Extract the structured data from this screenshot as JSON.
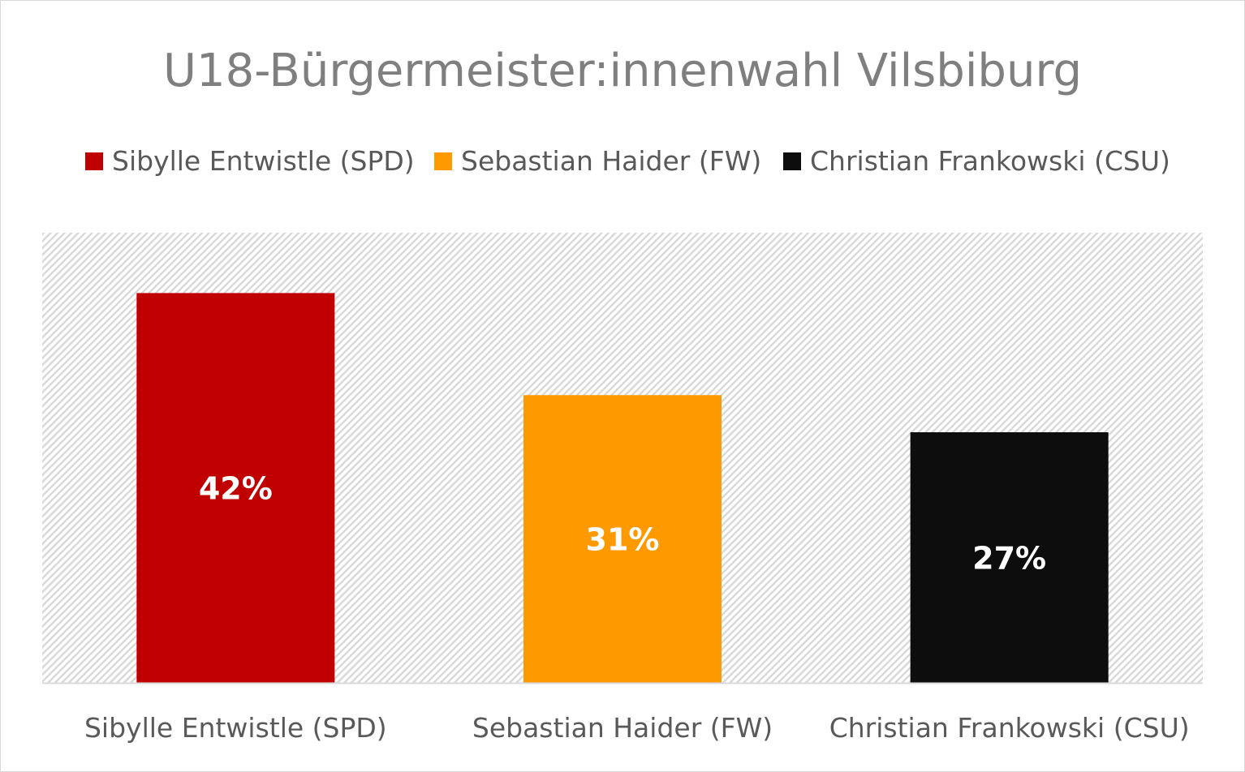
{
  "chart_data": {
    "type": "bar",
    "title": "U18-Bürgermeister:innenwahl Vilsbiburg",
    "categories": [
      "Sibylle Entwistle (SPD)",
      "Sebastian Haider (FW)",
      "Christian Frankowski (CSU)"
    ],
    "values": [
      42,
      31,
      27
    ],
    "data_labels": [
      "42%",
      "31%",
      "27%"
    ],
    "colors": [
      "#c00000",
      "#ff9900",
      "#0d0d0d"
    ],
    "legend": [
      "Sibylle Entwistle (SPD)",
      "Sebastian Haider (FW)",
      "Christian Frankowski (CSU)"
    ],
    "legend_position": "top",
    "xlabel": "",
    "ylabel": "",
    "ylim": [
      0,
      48.5
    ],
    "grid": false
  }
}
